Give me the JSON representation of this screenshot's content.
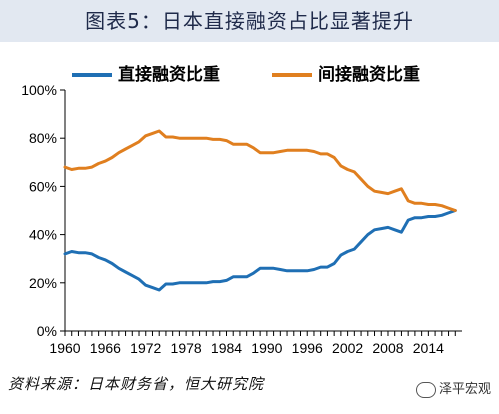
{
  "title": "图表5：日本直接融资占比显著提升",
  "source": "资料来源：日本财务省，恒大研究院",
  "watermark": "泽平宏观",
  "chart_data": {
    "type": "line",
    "title": "图表5：日本直接融资占比显著提升",
    "xlabel": "",
    "ylabel": "",
    "xlim": [
      1960,
      2019
    ],
    "ylim": [
      0,
      100
    ],
    "y_ticks": [
      "0%",
      "20%",
      "40%",
      "60%",
      "80%",
      "100%"
    ],
    "x_ticks": [
      "1960",
      "1966",
      "1972",
      "1978",
      "1984",
      "1990",
      "1996",
      "2002",
      "2008",
      "2014"
    ],
    "legend_position": "top",
    "grid": false,
    "series": [
      {
        "name": "直接融资比重",
        "color": "#1f6fb4",
        "x": [
          1960,
          1961,
          1962,
          1963,
          1964,
          1965,
          1966,
          1967,
          1968,
          1969,
          1970,
          1971,
          1972,
          1973,
          1974,
          1975,
          1976,
          1977,
          1978,
          1979,
          1980,
          1981,
          1982,
          1983,
          1984,
          1985,
          1986,
          1987,
          1988,
          1989,
          1990,
          1991,
          1992,
          1993,
          1994,
          1995,
          1996,
          1997,
          1998,
          1999,
          2000,
          2001,
          2002,
          2003,
          2004,
          2005,
          2006,
          2007,
          2008,
          2009,
          2010,
          2011,
          2012,
          2013,
          2014,
          2015,
          2016,
          2017,
          2018
        ],
        "values": [
          32,
          33,
          32.5,
          32.5,
          32,
          30.5,
          29.5,
          28,
          26,
          24.5,
          23,
          21.5,
          19,
          18,
          17,
          19.5,
          19.5,
          20,
          20,
          20,
          20,
          20,
          20.5,
          20.5,
          21,
          22.5,
          22.5,
          22.5,
          24,
          26,
          26,
          26,
          25.5,
          25,
          25,
          25,
          25,
          25.5,
          26.5,
          26.5,
          28,
          31.5,
          33,
          34,
          37,
          40,
          42,
          42.5,
          43,
          42,
          41,
          46,
          47,
          47,
          47.5,
          47.5,
          48,
          49,
          50
        ]
      },
      {
        "name": "间接融资比重",
        "color": "#e07f1f",
        "x": [
          1960,
          1961,
          1962,
          1963,
          1964,
          1965,
          1966,
          1967,
          1968,
          1969,
          1970,
          1971,
          1972,
          1973,
          1974,
          1975,
          1976,
          1977,
          1978,
          1979,
          1980,
          1981,
          1982,
          1983,
          1984,
          1985,
          1986,
          1987,
          1988,
          1989,
          1990,
          1991,
          1992,
          1993,
          1994,
          1995,
          1996,
          1997,
          1998,
          1999,
          2000,
          2001,
          2002,
          2003,
          2004,
          2005,
          2006,
          2007,
          2008,
          2009,
          2010,
          2011,
          2012,
          2013,
          2014,
          2015,
          2016,
          2017,
          2018
        ],
        "values": [
          68,
          67,
          67.5,
          67.5,
          68,
          69.5,
          70.5,
          72,
          74,
          75.5,
          77,
          78.5,
          81,
          82,
          83,
          80.5,
          80.5,
          80,
          80,
          80,
          80,
          80,
          79.5,
          79.5,
          79,
          77.5,
          77.5,
          77.5,
          76,
          74,
          74,
          74,
          74.5,
          75,
          75,
          75,
          75,
          74.5,
          73.5,
          73.5,
          72,
          68.5,
          67,
          66,
          63,
          60,
          58,
          57.5,
          57,
          58,
          59,
          54,
          53,
          53,
          52.5,
          52.5,
          52,
          51,
          50
        ]
      }
    ]
  }
}
